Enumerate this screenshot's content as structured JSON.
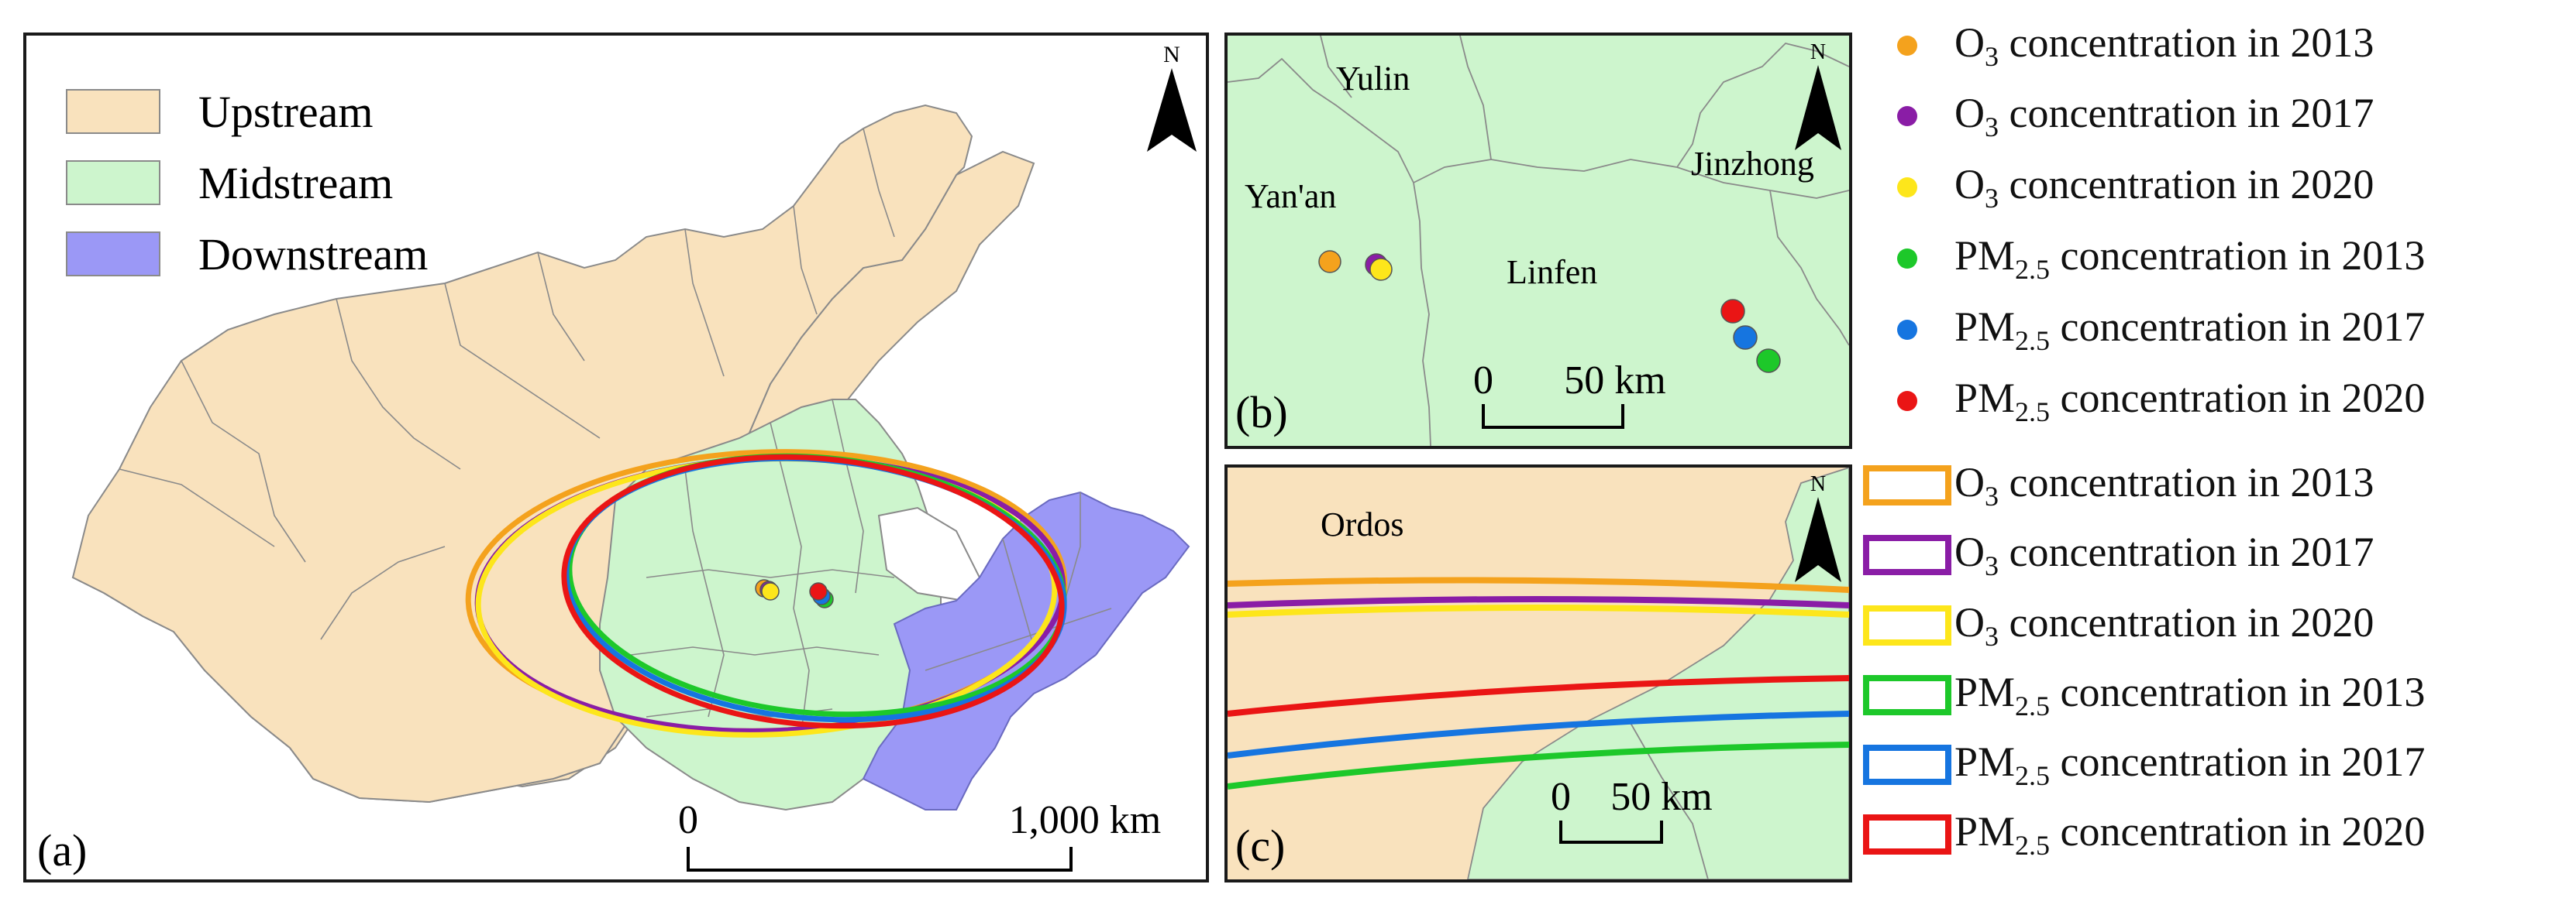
{
  "colors": {
    "upstream": "#f9e2bd",
    "midstream": "#cdf5cd",
    "downstream": "#9b98f6",
    "o3_2013": "#f4a21d",
    "o3_2017": "#8a1da6",
    "o3_2020": "#fde61b",
    "pm_2013": "#1dc82a",
    "pm_2017": "#1675e0",
    "pm_2020": "#ea1515"
  },
  "panel_a": {
    "label": "(a)",
    "north": "N",
    "legend": [
      {
        "label": "Upstream"
      },
      {
        "label": "Midstream"
      },
      {
        "label": "Downstream"
      }
    ],
    "scale": {
      "start": "0",
      "end": "1,000 km"
    }
  },
  "panel_b": {
    "label": "(b)",
    "north": "N",
    "places": {
      "yulin": "Yulin",
      "yanan": "Yan'an",
      "linfen": "Linfen",
      "jinzhong": "Jinzhong"
    },
    "scale": {
      "start": "0",
      "end": "50 km"
    }
  },
  "panel_c": {
    "label": "(c)",
    "north": "N",
    "places": {
      "ordos": "Ordos"
    },
    "scale": {
      "start": "0",
      "end": "50 km"
    }
  },
  "legend": {
    "o3_prefix": "O",
    "o3_sub": "3",
    "pm_prefix": "PM",
    "pm_sub": "2.5",
    "entries": [
      {
        "kind": "point",
        "pollutant": "o3",
        "text": " concentration in 2013",
        "color": "#f4a21d"
      },
      {
        "kind": "point",
        "pollutant": "o3",
        "text": " concentration in 2017",
        "color": "#8a1da6"
      },
      {
        "kind": "point",
        "pollutant": "o3",
        "text": " concentration in 2020",
        "color": "#fde61b"
      },
      {
        "kind": "point",
        "pollutant": "pm",
        "text": " concentration in 2013",
        "color": "#1dc82a"
      },
      {
        "kind": "point",
        "pollutant": "pm",
        "text": " concentration in 2017",
        "color": "#1675e0"
      },
      {
        "kind": "point",
        "pollutant": "pm",
        "text": " concentration in 2020",
        "color": "#ea1515"
      },
      {
        "kind": "ellipse",
        "pollutant": "o3",
        "text": " concentration in 2013",
        "color": "#f4a21d"
      },
      {
        "kind": "ellipse",
        "pollutant": "o3",
        "text": " concentration in 2017",
        "color": "#8a1da6"
      },
      {
        "kind": "ellipse",
        "pollutant": "o3",
        "text": " concentration in 2020",
        "color": "#fde61b"
      },
      {
        "kind": "ellipse",
        "pollutant": "pm",
        "text": " concentration in 2013",
        "color": "#1dc82a"
      },
      {
        "kind": "ellipse",
        "pollutant": "pm",
        "text": " concentration in 2017",
        "color": "#1675e0"
      },
      {
        "kind": "ellipse",
        "pollutant": "pm",
        "text": " concentration in 2020",
        "color": "#ea1515"
      }
    ]
  }
}
